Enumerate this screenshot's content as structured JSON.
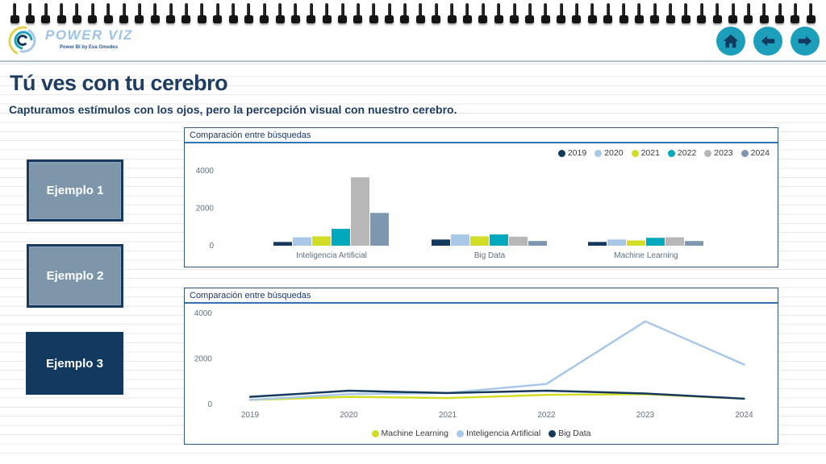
{
  "logo": {
    "name": "POWER VIZ",
    "tagline": "Power BI by Eva Omedes"
  },
  "nav": {
    "home_icon": "home",
    "back_icon": "arrow-left",
    "forward_icon": "arrow-right"
  },
  "page": {
    "title": "Tú ves con tu cerebro",
    "subtitle": "Capturamos estímulos con los ojos, pero la percepción visual con nuestro cerebro."
  },
  "buttons": [
    {
      "label": "Ejemplo 1",
      "active": false
    },
    {
      "label": "Ejemplo 2",
      "active": false
    },
    {
      "label": "Ejemplo 3",
      "active": true
    }
  ],
  "colors": {
    "accent_teal": "#1B9FBA",
    "navy": "#16395E",
    "light_blue": "#A9C8E8",
    "yellow_green": "#D2DE26",
    "teal": "#00A9BE",
    "gray": "#B7B7B7",
    "slate_blue": "#7E97B0",
    "logo_text": "#9DC3E6",
    "title_navy": "#1F3C61"
  },
  "chart_data": [
    {
      "type": "bar",
      "title": "Comparación entre búsquedas",
      "categories": [
        "Inteligencia Artificial",
        "Big Data",
        "Machine Learning"
      ],
      "series": [
        {
          "name": "2019",
          "color": "#16395E",
          "values": [
            200,
            330,
            200
          ]
        },
        {
          "name": "2020",
          "color": "#A9C8E8",
          "values": [
            450,
            600,
            330
          ]
        },
        {
          "name": "2021",
          "color": "#D2DE26",
          "values": [
            500,
            500,
            280
          ]
        },
        {
          "name": "2022",
          "color": "#00A9BE",
          "values": [
            900,
            600,
            420
          ]
        },
        {
          "name": "2023",
          "color": "#B7B7B7",
          "values": [
            3650,
            480,
            450
          ]
        },
        {
          "name": "2024",
          "color": "#7E97B0",
          "values": [
            1750,
            250,
            250
          ]
        }
      ],
      "ylim": [
        0,
        4000
      ],
      "yticks": [
        0,
        2000,
        4000
      ],
      "legend_position": "top-right",
      "grid": false
    },
    {
      "type": "line",
      "title": "Comparación entre búsquedas",
      "x": [
        "2019",
        "2020",
        "2021",
        "2022",
        "2023",
        "2024"
      ],
      "series": [
        {
          "name": "Machine Learning",
          "color": "#D2DE26",
          "values": [
            200,
            330,
            280,
            420,
            450,
            250
          ]
        },
        {
          "name": "Inteligencia Artificial",
          "color": "#A9C8E8",
          "values": [
            200,
            450,
            500,
            900,
            3650,
            1750
          ]
        },
        {
          "name": "Big Data",
          "color": "#16395E",
          "values": [
            330,
            600,
            500,
            600,
            480,
            250
          ]
        }
      ],
      "ylim": [
        0,
        4000
      ],
      "yticks": [
        0,
        2000,
        4000
      ],
      "legend_position": "bottom-center",
      "grid": false
    }
  ]
}
